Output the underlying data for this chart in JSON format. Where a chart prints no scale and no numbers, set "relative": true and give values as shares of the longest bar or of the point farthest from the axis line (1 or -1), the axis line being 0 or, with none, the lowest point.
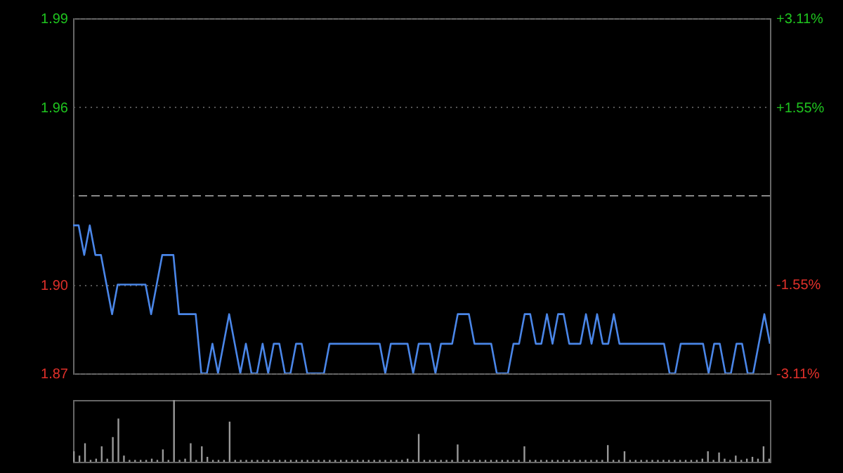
{
  "chart_data": [
    {
      "type": "line",
      "categories": [
        null,
        null,
        null,
        null,
        null,
        null,
        null,
        null,
        null,
        null,
        null,
        null,
        null,
        null,
        null,
        null,
        null,
        null,
        null,
        null,
        null,
        null,
        null,
        null,
        null,
        null,
        null,
        null,
        null,
        null,
        null,
        null,
        null,
        null,
        null,
        null,
        null,
        null,
        null,
        null,
        null,
        null,
        null,
        null,
        null,
        null,
        null,
        null,
        null,
        null,
        null,
        null,
        null,
        null,
        null,
        null,
        null,
        null,
        null,
        null,
        null,
        null,
        null,
        null,
        null,
        null,
        null,
        null,
        null,
        null,
        null,
        null,
        null,
        null,
        null,
        null,
        null,
        null,
        null,
        null,
        null,
        null,
        null,
        null,
        null,
        null,
        null,
        null,
        null,
        null,
        null,
        null,
        null,
        null,
        null,
        null,
        null,
        null,
        null,
        null,
        null,
        null,
        null,
        null,
        null,
        null,
        null,
        null,
        null,
        null,
        null,
        null,
        null,
        null,
        null,
        null,
        null,
        null,
        null,
        null,
        null,
        null,
        null,
        null,
        null,
        null
      ],
      "series": [
        {
          "color": "#4a86e8",
          "values": [
            1.92,
            1.92,
            1.91,
            1.92,
            1.91,
            1.91,
            1.9,
            1.89,
            1.9,
            1.9,
            1.9,
            1.9,
            1.9,
            1.9,
            1.89,
            1.9,
            1.91,
            1.91,
            1.91,
            1.89,
            1.89,
            1.89,
            1.89,
            1.87,
            1.87,
            1.88,
            1.87,
            1.88,
            1.89,
            1.88,
            1.87,
            1.88,
            1.87,
            1.87,
            1.88,
            1.87,
            1.88,
            1.88,
            1.87,
            1.87,
            1.88,
            1.88,
            1.87,
            1.87,
            1.87,
            1.87,
            1.88,
            1.88,
            1.88,
            1.88,
            1.88,
            1.88,
            1.88,
            1.88,
            1.88,
            1.88,
            1.87,
            1.88,
            1.88,
            1.88,
            1.88,
            1.87,
            1.88,
            1.88,
            1.88,
            1.87,
            1.88,
            1.88,
            1.88,
            1.89,
            1.89,
            1.89,
            1.88,
            1.88,
            1.88,
            1.88,
            1.87,
            1.87,
            1.87,
            1.88,
            1.88,
            1.89,
            1.89,
            1.88,
            1.88,
            1.89,
            1.88,
            1.89,
            1.89,
            1.88,
            1.88,
            1.88,
            1.89,
            1.88,
            1.89,
            1.88,
            1.88,
            1.89,
            1.88,
            1.88,
            1.88,
            1.88,
            1.88,
            1.88,
            1.88,
            1.88,
            1.88,
            1.87,
            1.87,
            1.88,
            1.88,
            1.88,
            1.88,
            1.88,
            1.87,
            1.88,
            1.88,
            1.87,
            1.87,
            1.88,
            1.88,
            1.87,
            1.87,
            1.88,
            1.89,
            1.88
          ]
        }
      ],
      "ylim": [
        1.87,
        1.99
      ],
      "yticks": [
        1.87,
        {
          "value": 1.9,
          "label": "1.90"
        },
        1.96,
        1.99
      ],
      "y2lim": [
        -3.11,
        3.11
      ],
      "y2ticks": [
        {
          "value": -3.11,
          "label": "-3.11%"
        },
        {
          "value": -1.55,
          "label": "-1.55%"
        },
        {
          "value": 1.55,
          "label": "+1.55%"
        },
        {
          "value": 3.11,
          "label": "+3.11%"
        }
      ],
      "ref_lines": [
        {
          "axis": "y",
          "value": 1.93,
          "color": "#888888",
          "line_style": "dashed"
        }
      ],
      "grid": "y",
      "tick_labels": "y"
    },
    {
      "type": "bar",
      "relative": true,
      "tick_labels": false,
      "categories": [
        null,
        null,
        null,
        null,
        null,
        null,
        null,
        null,
        null,
        null,
        null,
        null,
        null,
        null,
        null,
        null,
        null,
        null,
        null,
        null,
        null,
        null,
        null,
        null,
        null,
        null,
        null,
        null,
        null,
        null,
        null,
        null,
        null,
        null,
        null,
        null,
        null,
        null,
        null,
        null,
        null,
        null,
        null,
        null,
        null,
        null,
        null,
        null,
        null,
        null,
        null,
        null,
        null,
        null,
        null,
        null,
        null,
        null,
        null,
        null,
        null,
        null,
        null,
        null,
        null,
        null,
        null,
        null,
        null,
        null,
        null,
        null,
        null,
        null,
        null,
        null,
        null,
        null,
        null,
        null,
        null,
        null,
        null,
        null,
        null,
        null,
        null,
        null,
        null,
        null,
        null,
        null,
        null,
        null,
        null,
        null,
        null,
        null,
        null,
        null,
        null,
        null,
        null,
        null,
        null,
        null,
        null,
        null,
        null,
        null,
        null,
        null,
        null,
        null,
        null,
        null,
        null,
        null,
        null,
        null,
        null,
        null,
        null,
        null,
        null,
        null
      ],
      "series": [
        {
          "color": "#9a9a9a",
          "values": [
            0.17,
            0.1,
            0.3,
            0.03,
            0.05,
            0.25,
            0.05,
            0.4,
            0.7,
            0.1,
            0.03,
            0.03,
            0.03,
            0.03,
            0.05,
            0.03,
            0.2,
            0.03,
            1.0,
            0.03,
            0.05,
            0.3,
            0.03,
            0.25,
            0.08,
            0.03,
            0.03,
            0.03,
            0.65,
            0.03,
            0.03,
            0.03,
            0.03,
            0.03,
            0.03,
            0.03,
            0.03,
            0.03,
            0.03,
            0.03,
            0.03,
            0.03,
            0.03,
            0.03,
            0.03,
            0.03,
            0.03,
            0.03,
            0.03,
            0.03,
            0.03,
            0.03,
            0.03,
            0.03,
            0.03,
            0.03,
            0.03,
            0.03,
            0.03,
            0.03,
            0.05,
            0.03,
            0.45,
            0.03,
            0.03,
            0.03,
            0.03,
            0.03,
            0.03,
            0.28,
            0.03,
            0.03,
            0.03,
            0.03,
            0.03,
            0.03,
            0.03,
            0.03,
            0.03,
            0.03,
            0.03,
            0.25,
            0.03,
            0.03,
            0.03,
            0.03,
            0.03,
            0.03,
            0.03,
            0.03,
            0.03,
            0.03,
            0.03,
            0.03,
            0.03,
            0.03,
            0.27,
            0.03,
            0.03,
            0.17,
            0.03,
            0.03,
            0.03,
            0.03,
            0.03,
            0.03,
            0.03,
            0.03,
            0.03,
            0.03,
            0.03,
            0.03,
            0.03,
            0.05,
            0.17,
            0.03,
            0.15,
            0.05,
            0.03,
            0.1,
            0.03,
            0.05,
            0.08,
            0.05,
            0.25,
            0.05
          ]
        }
      ]
    }
  ]
}
